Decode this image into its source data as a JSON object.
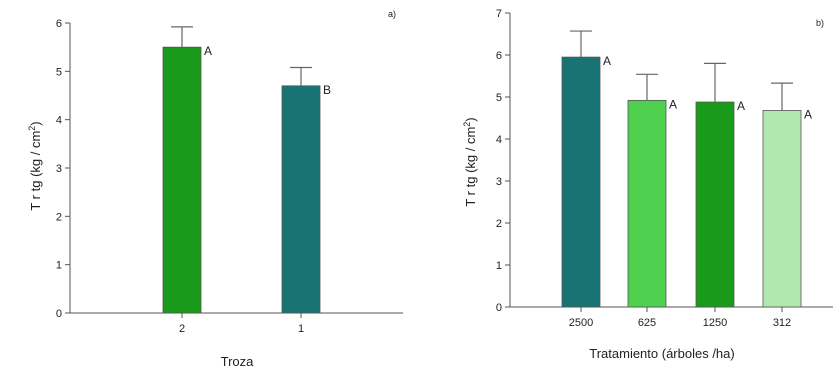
{
  "chart_data": [
    {
      "type": "bar",
      "panel_label": "a)",
      "categories": [
        "2",
        "1"
      ],
      "values": [
        5.5,
        4.7
      ],
      "errors": [
        0.42,
        0.38
      ],
      "significance": [
        "A",
        "B"
      ],
      "colors": [
        "#1a9a1a",
        "#1a7373"
      ],
      "xlabel": "Troza",
      "ylabel": "T r tg (kg / cm",
      "ylabel_sup": "2",
      "ylabel_end": ")",
      "ylim": [
        0,
        6
      ],
      "yticks": [
        "0",
        "1",
        "2",
        "3",
        "4",
        "5",
        "6"
      ],
      "grid": false
    },
    {
      "type": "bar",
      "panel_label": "b)",
      "categories": [
        "2500",
        "625",
        "1250",
        "312"
      ],
      "values": [
        5.95,
        4.92,
        4.88,
        4.68
      ],
      "errors": [
        0.62,
        0.62,
        0.92,
        0.65
      ],
      "significance": [
        "A",
        "A",
        "A",
        "A"
      ],
      "colors": [
        "#1a7373",
        "#4fd14f",
        "#1a9a1a",
        "#b0e8b0"
      ],
      "xlabel": "Tratamiento (árboles /ha)",
      "ylabel": "T r tg (kg / cm",
      "ylabel_sup": "2",
      "ylabel_end": ")",
      "ylim": [
        0,
        7
      ],
      "yticks": [
        "0",
        "1",
        "2",
        "3",
        "4",
        "5",
        "6",
        "7"
      ],
      "grid": false
    }
  ]
}
